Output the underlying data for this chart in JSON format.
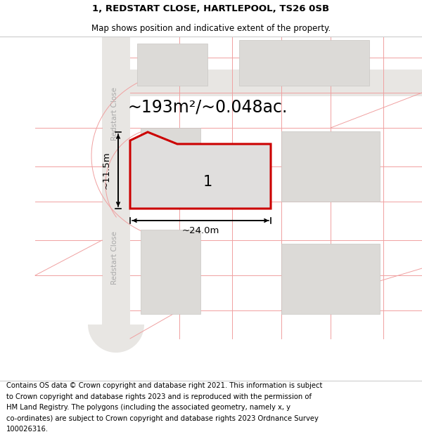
{
  "title_line1": "1, REDSTART CLOSE, HARTLEPOOL, TS26 0SB",
  "title_line2": "Map shows position and indicative extent of the property.",
  "title_fontsize": 9.5,
  "subtitle_fontsize": 8.5,
  "map_bg_color": "#f7f5f2",
  "road_color": "#e8e6e3",
  "boundary_line_color": "#f0a0a0",
  "building_fill": "#dcdad7",
  "building_edge": "#c8c6c3",
  "plot_fill": "#e0dedd",
  "plot_edge": "#cc0000",
  "road_label_color": "#aaaaaa",
  "area_text": "~193m²/~0.048ac.",
  "area_fontsize": 17,
  "plot_label": "1",
  "plot_label_fontsize": 15,
  "dim_width_text": "~24.0m",
  "dim_height_text": "~11.5m",
  "dim_fontsize": 9.5,
  "road_name": "Redstart Close",
  "header_bg": "#ffffff",
  "footer_bg": "#ffffff",
  "footer_fontsize": 7.2,
  "footer_lines": [
    "Contains OS data © Crown copyright and database right 2021. This information is subject",
    "to Crown copyright and database rights 2023 and is reproduced with the permission of",
    "HM Land Registry. The polygons (including the associated geometry, namely x, y",
    "co-ordinates) are subject to Crown copyright and database rights 2023 Ordnance Survey",
    "100026316."
  ]
}
